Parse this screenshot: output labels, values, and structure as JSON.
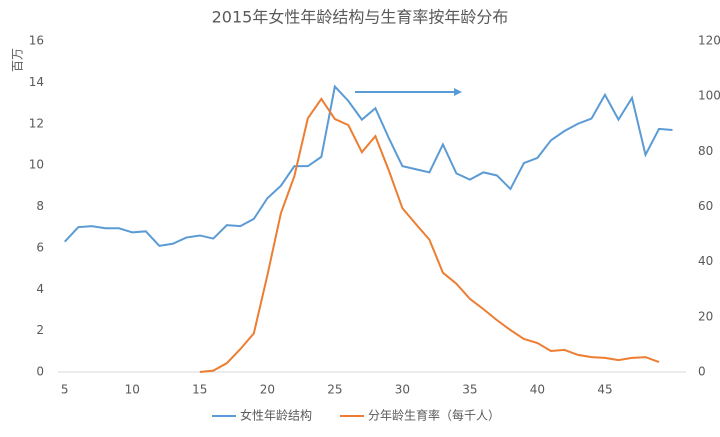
{
  "chart_data": {
    "type": "line",
    "title": "2015年女性年龄结构与生育率按年龄分布",
    "y_label": "百万",
    "x": [
      5,
      6,
      7,
      8,
      9,
      10,
      11,
      12,
      13,
      14,
      15,
      16,
      17,
      18,
      19,
      20,
      21,
      22,
      23,
      24,
      25,
      26,
      27,
      28,
      29,
      30,
      31,
      32,
      33,
      34,
      35,
      36,
      37,
      38,
      39,
      40,
      41,
      42,
      43,
      44,
      45,
      46,
      47,
      48,
      49,
      50
    ],
    "xlim": [
      4.5,
      51
    ],
    "xticks": [
      5,
      10,
      15,
      20,
      25,
      30,
      35,
      40,
      45
    ],
    "ylim": [
      0,
      16
    ],
    "yticks": [
      0,
      2,
      4,
      6,
      8,
      10,
      12,
      14,
      16
    ],
    "y2lim": [
      0,
      120
    ],
    "y2ticks": [
      0,
      20,
      40,
      60,
      80,
      100,
      120
    ],
    "grid": false,
    "legend": "bottom",
    "series": [
      {
        "name": "女性年龄结构",
        "color": "#5b9bd5",
        "axis": "y",
        "values": [
          6.3,
          7.0,
          7.05,
          6.95,
          6.95,
          6.75,
          6.8,
          6.1,
          6.2,
          6.5,
          6.6,
          6.45,
          7.1,
          7.05,
          7.4,
          8.4,
          9.0,
          9.95,
          9.95,
          10.4,
          13.8,
          13.1,
          12.2,
          12.75,
          11.3,
          9.95,
          9.8,
          9.65,
          11.0,
          9.6,
          9.3,
          9.65,
          9.5,
          8.85,
          10.1,
          10.35,
          11.2,
          11.65,
          12.0,
          12.25,
          13.4,
          12.2,
          13.25,
          10.5,
          11.75,
          11.7
        ]
      },
      {
        "name": "分年龄生育率（每千人）",
        "color": "#ed7d31",
        "axis": "y2",
        "values": [
          null,
          null,
          null,
          null,
          null,
          null,
          null,
          null,
          null,
          null,
          0,
          0.5,
          3.2,
          8.3,
          14,
          35,
          57.5,
          71,
          92,
          99,
          91.7,
          89.5,
          79.7,
          85.5,
          73,
          59.4,
          53.6,
          48,
          36,
          32,
          26.5,
          22.8,
          18.8,
          15.2,
          12,
          10.5,
          7.6,
          8,
          6.2,
          5.4,
          5.1,
          4.3,
          5.1,
          5.4,
          3.6,
          null
        ]
      }
    ]
  }
}
